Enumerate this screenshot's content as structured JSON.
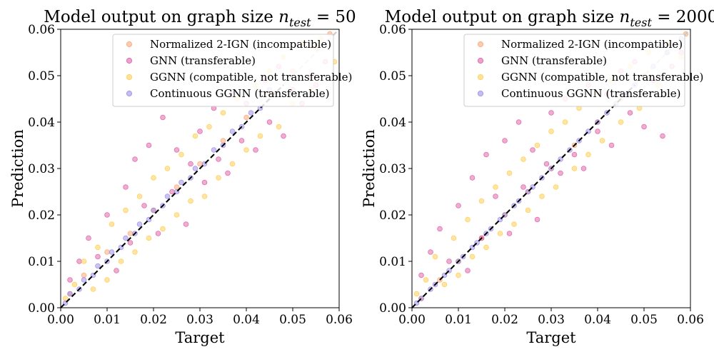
{
  "colors": {
    "normalized_2ign": "#fb9a62",
    "gnn": "#d9469a",
    "ggnn": "#ffc533",
    "continuous_ggnn": "#8f7ae6",
    "identity_line": "#000000",
    "transfer_line": "#c8c8c8"
  },
  "chart_data": [
    {
      "type": "scatter",
      "title_text": "Model output on graph size ",
      "title_math": "n",
      "title_subscript": "test",
      "title_eq": " = 50",
      "xlabel": "Target",
      "ylabel": "Prediction",
      "xlim": [
        0,
        0.06
      ],
      "ylim": [
        0,
        0.06
      ],
      "xticks": [
        "0.00",
        "0.01",
        "0.02",
        "0.03",
        "0.04",
        "0.05",
        "0.06"
      ],
      "yticks": [
        "0.00",
        "0.01",
        "0.02",
        "0.03",
        "0.04",
        "0.05",
        "0.06"
      ],
      "grid": false,
      "legend_position": "top-right",
      "reference_line": "y = x (dashed)",
      "series": [
        {
          "name": "Normalized 2-IGN (incompatible)",
          "color": "#fb9a62",
          "points": [
            [
              0.002,
              0.003
            ],
            [
              0.005,
              0.007
            ],
            [
              0.01,
              0.012
            ],
            [
              0.015,
              0.016
            ],
            [
              0.02,
              0.021
            ],
            [
              0.025,
              0.026
            ],
            [
              0.03,
              0.031
            ],
            [
              0.035,
              0.036
            ],
            [
              0.04,
              0.041
            ],
            [
              0.045,
              0.046
            ],
            [
              0.05,
              0.051
            ],
            [
              0.055,
              0.056
            ],
            [
              0.058,
              0.059
            ]
          ]
        },
        {
          "name": "GNN (transferable)",
          "color": "#d9469a",
          "points": [
            [
              0.002,
              0.006
            ],
            [
              0.004,
              0.01
            ],
            [
              0.006,
              0.015
            ],
            [
              0.008,
              0.011
            ],
            [
              0.01,
              0.02
            ],
            [
              0.012,
              0.008
            ],
            [
              0.014,
              0.026
            ],
            [
              0.015,
              0.014
            ],
            [
              0.016,
              0.032
            ],
            [
              0.018,
              0.022
            ],
            [
              0.019,
              0.035
            ],
            [
              0.021,
              0.016
            ],
            [
              0.022,
              0.041
            ],
            [
              0.024,
              0.025
            ],
            [
              0.025,
              0.034
            ],
            [
              0.027,
              0.018
            ],
            [
              0.028,
              0.031
            ],
            [
              0.03,
              0.038
            ],
            [
              0.031,
              0.027
            ],
            [
              0.033,
              0.043
            ],
            [
              0.034,
              0.032
            ],
            [
              0.036,
              0.029
            ],
            [
              0.037,
              0.046
            ],
            [
              0.039,
              0.036
            ],
            [
              0.04,
              0.044
            ],
            [
              0.042,
              0.034
            ],
            [
              0.044,
              0.049
            ],
            [
              0.045,
              0.04
            ],
            [
              0.047,
              0.052
            ],
            [
              0.048,
              0.037
            ],
            [
              0.05,
              0.047
            ],
            [
              0.052,
              0.044
            ],
            [
              0.054,
              0.05
            ],
            [
              0.055,
              0.048
            ],
            [
              0.057,
              0.053
            ]
          ]
        },
        {
          "name": "GGNN (compatible, not transferable)",
          "color": "#ffc533",
          "points": [
            [
              0.001,
              0.002
            ],
            [
              0.003,
              0.005
            ],
            [
              0.005,
              0.01
            ],
            [
              0.007,
              0.004
            ],
            [
              0.008,
              0.013
            ],
            [
              0.01,
              0.006
            ],
            [
              0.011,
              0.018
            ],
            [
              0.013,
              0.01
            ],
            [
              0.014,
              0.021
            ],
            [
              0.016,
              0.012
            ],
            [
              0.017,
              0.024
            ],
            [
              0.019,
              0.015
            ],
            [
              0.02,
              0.028
            ],
            [
              0.022,
              0.017
            ],
            [
              0.023,
              0.03
            ],
            [
              0.025,
              0.02
            ],
            [
              0.026,
              0.033
            ],
            [
              0.028,
              0.023
            ],
            [
              0.029,
              0.037
            ],
            [
              0.031,
              0.024
            ],
            [
              0.032,
              0.039
            ],
            [
              0.034,
              0.028
            ],
            [
              0.035,
              0.042
            ],
            [
              0.037,
              0.031
            ],
            [
              0.038,
              0.045
            ],
            [
              0.04,
              0.034
            ],
            [
              0.042,
              0.048
            ],
            [
              0.043,
              0.037
            ],
            [
              0.045,
              0.051
            ],
            [
              0.047,
              0.039
            ],
            [
              0.048,
              0.054
            ],
            [
              0.05,
              0.044
            ],
            [
              0.052,
              0.057
            ],
            [
              0.054,
              0.047
            ],
            [
              0.056,
              0.058
            ],
            [
              0.059,
              0.053
            ]
          ]
        },
        {
          "name": "Continuous GGNN (transferable)",
          "color": "#8f7ae6",
          "points": [
            [
              0.001,
              0.001
            ],
            [
              0.002,
              0.003
            ],
            [
              0.004,
              0.004
            ],
            [
              0.005,
              0.006
            ],
            [
              0.007,
              0.007
            ],
            [
              0.008,
              0.009
            ],
            [
              0.01,
              0.01
            ],
            [
              0.011,
              0.012
            ],
            [
              0.013,
              0.013
            ],
            [
              0.014,
              0.015
            ],
            [
              0.016,
              0.016
            ],
            [
              0.017,
              0.018
            ],
            [
              0.019,
              0.019
            ],
            [
              0.02,
              0.021
            ],
            [
              0.022,
              0.022
            ],
            [
              0.023,
              0.024
            ],
            [
              0.025,
              0.025
            ],
            [
              0.026,
              0.027
            ],
            [
              0.028,
              0.028
            ],
            [
              0.029,
              0.03
            ],
            [
              0.031,
              0.031
            ],
            [
              0.033,
              0.034
            ],
            [
              0.035,
              0.035
            ],
            [
              0.037,
              0.038
            ],
            [
              0.039,
              0.039
            ],
            [
              0.041,
              0.042
            ],
            [
              0.043,
              0.043
            ],
            [
              0.045,
              0.047
            ]
          ]
        }
      ]
    },
    {
      "type": "scatter",
      "title_text": "Model output on graph size ",
      "title_math": "n",
      "title_subscript": "test",
      "title_eq": " = 2000",
      "xlabel": "Target",
      "ylabel": "Prediction",
      "xlim": [
        0,
        0.06
      ],
      "ylim": [
        0,
        0.06
      ],
      "xticks": [
        "0.00",
        "0.01",
        "0.02",
        "0.03",
        "0.04",
        "0.05",
        "0.06"
      ],
      "yticks": [
        "0.00",
        "0.01",
        "0.02",
        "0.03",
        "0.04",
        "0.05",
        "0.06"
      ],
      "grid": false,
      "legend_position": "top-right",
      "reference_line": "y = x (dashed)",
      "series": [
        {
          "name": "Normalized 2-IGN (incompatible)",
          "color": "#fb9a62",
          "points": [
            [
              0.002,
              0.002
            ],
            [
              0.006,
              0.006
            ],
            [
              0.01,
              0.01
            ],
            [
              0.015,
              0.015
            ],
            [
              0.02,
              0.02
            ],
            [
              0.025,
              0.025
            ],
            [
              0.03,
              0.03
            ],
            [
              0.035,
              0.035
            ],
            [
              0.04,
              0.04
            ],
            [
              0.045,
              0.045
            ],
            [
              0.05,
              0.05
            ],
            [
              0.055,
              0.055
            ],
            [
              0.059,
              0.059
            ]
          ]
        },
        {
          "name": "GNN (transferable)",
          "color": "#d9469a",
          "points": [
            [
              0.002,
              0.007
            ],
            [
              0.004,
              0.012
            ],
            [
              0.006,
              0.017
            ],
            [
              0.008,
              0.01
            ],
            [
              0.01,
              0.022
            ],
            [
              0.012,
              0.008
            ],
            [
              0.013,
              0.028
            ],
            [
              0.015,
              0.015
            ],
            [
              0.016,
              0.033
            ],
            [
              0.018,
              0.024
            ],
            [
              0.02,
              0.036
            ],
            [
              0.021,
              0.016
            ],
            [
              0.023,
              0.04
            ],
            [
              0.024,
              0.026
            ],
            [
              0.026,
              0.034
            ],
            [
              0.027,
              0.019
            ],
            [
              0.029,
              0.031
            ],
            [
              0.03,
              0.042
            ],
            [
              0.032,
              0.029
            ],
            [
              0.033,
              0.045
            ],
            [
              0.035,
              0.033
            ],
            [
              0.037,
              0.03
            ],
            [
              0.038,
              0.048
            ],
            [
              0.04,
              0.038
            ],
            [
              0.042,
              0.046
            ],
            [
              0.043,
              0.035
            ],
            [
              0.045,
              0.051
            ],
            [
              0.047,
              0.042
            ],
            [
              0.048,
              0.053
            ],
            [
              0.05,
              0.039
            ],
            [
              0.052,
              0.049
            ],
            [
              0.054,
              0.037
            ],
            [
              0.056,
              0.052
            ],
            [
              0.058,
              0.055
            ]
          ]
        },
        {
          "name": "GGNN (compatible, not transferable)",
          "color": "#ffc533",
          "points": [
            [
              0.001,
              0.003
            ],
            [
              0.003,
              0.006
            ],
            [
              0.005,
              0.011
            ],
            [
              0.007,
              0.005
            ],
            [
              0.009,
              0.015
            ],
            [
              0.01,
              0.007
            ],
            [
              0.012,
              0.019
            ],
            [
              0.013,
              0.011
            ],
            [
              0.015,
              0.023
            ],
            [
              0.016,
              0.013
            ],
            [
              0.018,
              0.026
            ],
            [
              0.019,
              0.016
            ],
            [
              0.021,
              0.029
            ],
            [
              0.022,
              0.018
            ],
            [
              0.024,
              0.032
            ],
            [
              0.025,
              0.021
            ],
            [
              0.027,
              0.035
            ],
            [
              0.028,
              0.024
            ],
            [
              0.03,
              0.038
            ],
            [
              0.031,
              0.026
            ],
            [
              0.033,
              0.04
            ],
            [
              0.035,
              0.03
            ],
            [
              0.036,
              0.043
            ],
            [
              0.038,
              0.033
            ],
            [
              0.04,
              0.046
            ],
            [
              0.041,
              0.036
            ],
            [
              0.043,
              0.049
            ],
            [
              0.045,
              0.04
            ],
            [
              0.047,
              0.052
            ],
            [
              0.049,
              0.043
            ],
            [
              0.051,
              0.055
            ],
            [
              0.053,
              0.048
            ],
            [
              0.055,
              0.057
            ],
            [
              0.058,
              0.054
            ]
          ]
        },
        {
          "name": "Continuous GGNN (transferable)",
          "color": "#8f7ae6",
          "points": [
            [
              0.001,
              0.001
            ],
            [
              0.002,
              0.002
            ],
            [
              0.004,
              0.004
            ],
            [
              0.005,
              0.005
            ],
            [
              0.007,
              0.007
            ],
            [
              0.008,
              0.008
            ],
            [
              0.01,
              0.01
            ],
            [
              0.011,
              0.011
            ],
            [
              0.013,
              0.013
            ],
            [
              0.014,
              0.014
            ],
            [
              0.016,
              0.016
            ],
            [
              0.017,
              0.017
            ],
            [
              0.019,
              0.019
            ],
            [
              0.02,
              0.02
            ],
            [
              0.022,
              0.022
            ],
            [
              0.023,
              0.023
            ],
            [
              0.025,
              0.025
            ],
            [
              0.026,
              0.026
            ],
            [
              0.028,
              0.028
            ],
            [
              0.03,
              0.03
            ],
            [
              0.032,
              0.032
            ],
            [
              0.034,
              0.034
            ],
            [
              0.036,
              0.036
            ],
            [
              0.038,
              0.038
            ],
            [
              0.04,
              0.04
            ],
            [
              0.042,
              0.042
            ],
            [
              0.044,
              0.044
            ],
            [
              0.046,
              0.046
            ],
            [
              0.048,
              0.048
            ],
            [
              0.052,
              0.052
            ],
            [
              0.055,
              0.055
            ],
            [
              0.058,
              0.058
            ]
          ]
        }
      ]
    }
  ]
}
